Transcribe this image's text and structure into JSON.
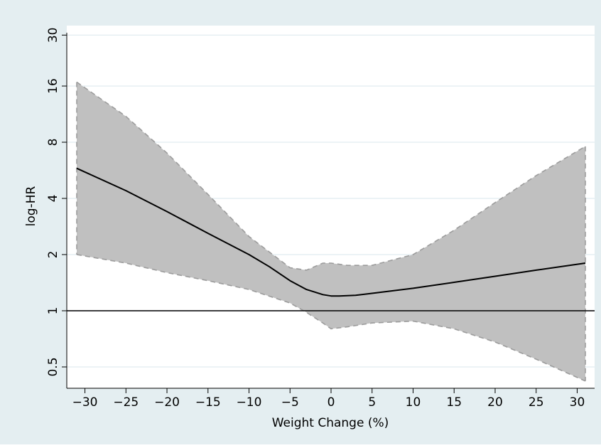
{
  "chart_data": {
    "type": "line",
    "title": "",
    "xlabel": "Weight Change (%)",
    "ylabel": "log-HR",
    "y_scale": "log2",
    "xlim": [
      -31,
      31
    ],
    "ylim": [
      0.4,
      34
    ],
    "x_ticks": [
      -30,
      -25,
      -20,
      -15,
      -10,
      -5,
      0,
      5,
      10,
      15,
      20,
      25,
      30
    ],
    "y_ticks": [
      0.5,
      1,
      2,
      4,
      8,
      16,
      30
    ],
    "y_tick_labels": [
      "0.5",
      "1",
      "2",
      "4",
      "8",
      "16",
      "30"
    ],
    "reference_line": 1,
    "grid": true,
    "legend": "none",
    "colors": {
      "outer_background": "#e4eef1",
      "plot_background": "#ffffff",
      "gridline": "#e1ecf1",
      "ci_fill": "#c0c0c0",
      "ci_border": "#9c9c9c",
      "estimate_line": "#000000"
    },
    "series": [
      {
        "role": "estimate",
        "x": [
          -31,
          -25,
          -20,
          -15,
          -10,
          -7.5,
          -5,
          -3,
          -1,
          0,
          1,
          3,
          5,
          10,
          15,
          20,
          25,
          31
        ],
        "y": [
          5.8,
          4.4,
          3.4,
          2.6,
          2.0,
          1.72,
          1.45,
          1.3,
          1.22,
          1.2,
          1.2,
          1.21,
          1.24,
          1.32,
          1.42,
          1.53,
          1.65,
          1.8
        ]
      },
      {
        "role": "ci_upper",
        "x": [
          -31,
          -25,
          -20,
          -15,
          -10,
          -5,
          -3,
          -1,
          0,
          2,
          5,
          10,
          15,
          20,
          25,
          31
        ],
        "y": [
          16.8,
          11.0,
          7.0,
          4.2,
          2.5,
          1.7,
          1.65,
          1.8,
          1.8,
          1.75,
          1.75,
          2.0,
          2.7,
          3.8,
          5.3,
          7.6
        ]
      },
      {
        "role": "ci_lower",
        "x": [
          -31,
          -25,
          -20,
          -15,
          -10,
          -5,
          -3,
          -1,
          0,
          2,
          5,
          10,
          15,
          20,
          25,
          31
        ],
        "y": [
          2.0,
          1.8,
          1.6,
          1.45,
          1.3,
          1.1,
          0.98,
          0.86,
          0.8,
          0.82,
          0.86,
          0.88,
          0.8,
          0.68,
          0.55,
          0.42
        ]
      }
    ]
  }
}
